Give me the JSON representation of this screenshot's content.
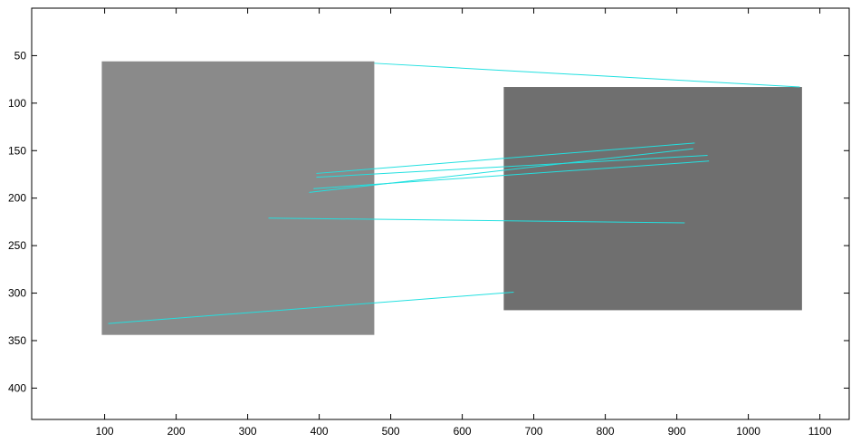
{
  "chart_data": {
    "type": "matches",
    "xlim": [
      -2,
      1141
    ],
    "ylim": [
      0,
      433
    ],
    "y_reversed": true,
    "xticks": [
      100,
      200,
      300,
      400,
      500,
      600,
      700,
      800,
      900,
      1000,
      1100
    ],
    "yticks": [
      50,
      100,
      150,
      200,
      250,
      300,
      350,
      400
    ],
    "images": [
      {
        "x": [
          96,
          477
        ],
        "y": [
          56,
          344
        ],
        "color": "#8a8a8a"
      },
      {
        "x": [
          658,
          1075
        ],
        "y": [
          83,
          318
        ],
        "color": "#6f6f6f"
      }
    ],
    "color": "#22e0e0",
    "segments": [
      {
        "x": [
          477,
          1072
        ],
        "y": [
          58,
          83
        ]
      },
      {
        "x": [
          105,
          672
        ],
        "y": [
          332,
          299
        ]
      },
      {
        "x": [
          329,
          911
        ],
        "y": [
          221,
          226
        ]
      },
      {
        "x": [
          396,
          925
        ],
        "y": [
          174,
          142
        ]
      },
      {
        "x": [
          396,
          943
        ],
        "y": [
          178,
          155
        ]
      },
      {
        "x": [
          392,
          945
        ],
        "y": [
          190,
          161
        ]
      },
      {
        "x": [
          386,
          923
        ],
        "y": [
          194,
          148
        ]
      }
    ]
  }
}
